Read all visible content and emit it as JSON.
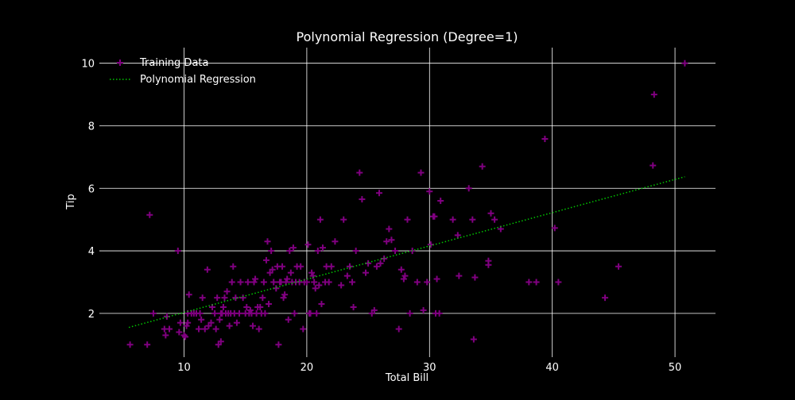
{
  "colors": {
    "background": "#000000",
    "text": "#ffffff",
    "grid": "#ffffff",
    "points": "#800080",
    "regression": "#00c800"
  },
  "chart_data": {
    "type": "scatter",
    "title": "Polynomial Regression (Degree=1)",
    "xlabel": "Total Bill",
    "ylabel": "Tip",
    "xlim": [
      3.1,
      53.3
    ],
    "ylim": [
      0.6,
      10.5
    ],
    "x_ticks": [
      10,
      20,
      30,
      40,
      50
    ],
    "y_ticks": [
      2,
      4,
      6,
      8,
      10
    ],
    "grid": true,
    "legend_position": "top-left",
    "legend": [
      {
        "label": "Training Data",
        "marker": "plus-icon"
      },
      {
        "label": "Polynomial Regression",
        "marker": "dotted-line-icon"
      }
    ],
    "series": [
      {
        "name": "Training Data",
        "kind": "scatter",
        "marker": "plus",
        "color": "#800080",
        "points": [
          [
            5.6,
            1.0
          ],
          [
            7.0,
            1.0
          ],
          [
            7.2,
            5.15
          ],
          [
            7.5,
            2.0
          ],
          [
            8.4,
            1.5
          ],
          [
            8.5,
            1.3
          ],
          [
            8.6,
            1.9
          ],
          [
            8.8,
            1.5
          ],
          [
            9.5,
            4.0
          ],
          [
            9.6,
            1.4
          ],
          [
            9.7,
            1.7
          ],
          [
            10.0,
            1.3
          ],
          [
            10.1,
            1.25
          ],
          [
            10.2,
            1.6
          ],
          [
            10.3,
            1.7
          ],
          [
            10.3,
            2.0
          ],
          [
            10.4,
            2.6
          ],
          [
            10.6,
            2.0
          ],
          [
            10.8,
            2.0
          ],
          [
            11.0,
            2.0
          ],
          [
            11.2,
            1.5
          ],
          [
            11.3,
            2.0
          ],
          [
            11.4,
            1.8
          ],
          [
            11.5,
            2.5
          ],
          [
            11.7,
            1.5
          ],
          [
            11.9,
            3.4
          ],
          [
            12.0,
            1.6
          ],
          [
            12.2,
            1.7
          ],
          [
            12.3,
            2.2
          ],
          [
            12.5,
            2.0
          ],
          [
            12.6,
            1.5
          ],
          [
            12.7,
            2.5
          ],
          [
            12.8,
            1.0
          ],
          [
            12.9,
            1.8
          ],
          [
            13.0,
            2.0
          ],
          [
            13.0,
            1.1
          ],
          [
            13.1,
            2.0
          ],
          [
            13.2,
            2.2
          ],
          [
            13.3,
            2.5
          ],
          [
            13.4,
            2.0
          ],
          [
            13.5,
            2.7
          ],
          [
            13.6,
            2.0
          ],
          [
            13.7,
            1.6
          ],
          [
            13.8,
            2.0
          ],
          [
            13.9,
            3.0
          ],
          [
            14.0,
            3.5
          ],
          [
            14.1,
            2.0
          ],
          [
            14.2,
            2.5
          ],
          [
            14.3,
            1.7
          ],
          [
            14.5,
            2.0
          ],
          [
            14.6,
            3.0
          ],
          [
            14.8,
            2.5
          ],
          [
            15.0,
            2.0
          ],
          [
            15.1,
            2.2
          ],
          [
            15.2,
            3.0
          ],
          [
            15.3,
            2.0
          ],
          [
            15.4,
            2.1
          ],
          [
            15.5,
            2.0
          ],
          [
            15.6,
            1.6
          ],
          [
            15.7,
            3.0
          ],
          [
            15.8,
            3.1
          ],
          [
            15.9,
            2.0
          ],
          [
            16.0,
            2.2
          ],
          [
            16.1,
            1.5
          ],
          [
            16.2,
            2.2
          ],
          [
            16.3,
            2.0
          ],
          [
            16.4,
            2.5
          ],
          [
            16.5,
            3.0
          ],
          [
            16.6,
            2.0
          ],
          [
            16.7,
            3.7
          ],
          [
            16.8,
            4.3
          ],
          [
            16.9,
            2.3
          ],
          [
            17.0,
            3.3
          ],
          [
            17.1,
            4.0
          ],
          [
            17.2,
            3.4
          ],
          [
            17.3,
            3.0
          ],
          [
            17.5,
            2.8
          ],
          [
            17.6,
            3.5
          ],
          [
            17.7,
            1.0
          ],
          [
            17.8,
            3.0
          ],
          [
            17.9,
            3.0
          ],
          [
            18.0,
            3.5
          ],
          [
            18.1,
            2.5
          ],
          [
            18.2,
            2.6
          ],
          [
            18.3,
            3.0
          ],
          [
            18.4,
            3.1
          ],
          [
            18.5,
            1.8
          ],
          [
            18.6,
            4.0
          ],
          [
            18.7,
            3.3
          ],
          [
            18.8,
            3.0
          ],
          [
            18.9,
            4.1
          ],
          [
            19.0,
            2.0
          ],
          [
            19.1,
            3.0
          ],
          [
            19.2,
            3.5
          ],
          [
            19.4,
            3.0
          ],
          [
            19.5,
            3.5
          ],
          [
            19.7,
            1.5
          ],
          [
            19.8,
            3.0
          ],
          [
            20.0,
            3.0
          ],
          [
            20.1,
            4.2
          ],
          [
            20.2,
            2.0
          ],
          [
            20.3,
            2.0
          ],
          [
            20.4,
            3.3
          ],
          [
            20.5,
            3.2
          ],
          [
            20.6,
            3.0
          ],
          [
            20.7,
            2.8
          ],
          [
            20.8,
            2.0
          ],
          [
            20.9,
            4.0
          ],
          [
            21.0,
            2.9
          ],
          [
            21.1,
            5.0
          ],
          [
            21.2,
            2.3
          ],
          [
            21.3,
            4.1
          ],
          [
            21.5,
            3.0
          ],
          [
            21.6,
            3.5
          ],
          [
            21.8,
            3.0
          ],
          [
            22.0,
            3.5
          ],
          [
            22.3,
            4.3
          ],
          [
            22.8,
            2.9
          ],
          [
            23.0,
            5.0
          ],
          [
            23.3,
            3.2
          ],
          [
            23.5,
            3.5
          ],
          [
            23.7,
            3.0
          ],
          [
            23.8,
            2.2
          ],
          [
            24.0,
            4.0
          ],
          [
            24.3,
            6.5
          ],
          [
            24.5,
            5.65
          ],
          [
            24.8,
            3.3
          ],
          [
            25.0,
            3.6
          ],
          [
            25.3,
            2.0
          ],
          [
            25.5,
            2.1
          ],
          [
            25.7,
            3.5
          ],
          [
            25.9,
            5.85
          ],
          [
            26.0,
            3.6
          ],
          [
            26.3,
            3.75
          ],
          [
            26.5,
            4.3
          ],
          [
            26.7,
            4.7
          ],
          [
            26.9,
            4.35
          ],
          [
            27.2,
            4.0
          ],
          [
            27.5,
            1.5
          ],
          [
            27.7,
            3.4
          ],
          [
            27.9,
            3.1
          ],
          [
            28.0,
            3.2
          ],
          [
            28.2,
            5.0
          ],
          [
            28.4,
            2.0
          ],
          [
            28.6,
            4.0
          ],
          [
            29.0,
            3.0
          ],
          [
            29.3,
            6.5
          ],
          [
            29.5,
            2.1
          ],
          [
            29.8,
            3.0
          ],
          [
            30.0,
            5.9
          ],
          [
            30.1,
            4.2
          ],
          [
            30.3,
            5.1
          ],
          [
            30.4,
            5.1
          ],
          [
            30.5,
            2.0
          ],
          [
            30.6,
            3.1
          ],
          [
            30.8,
            2.0
          ],
          [
            30.9,
            5.6
          ],
          [
            31.9,
            5.0
          ],
          [
            32.3,
            4.5
          ],
          [
            32.4,
            3.2
          ],
          [
            33.2,
            6.0
          ],
          [
            33.5,
            5.0
          ],
          [
            33.6,
            1.17
          ],
          [
            33.7,
            3.15
          ],
          [
            34.3,
            6.7
          ],
          [
            34.8,
            3.55
          ],
          [
            34.8,
            3.68
          ],
          [
            35.0,
            5.2
          ],
          [
            35.3,
            5.0
          ],
          [
            35.8,
            4.7
          ],
          [
            38.1,
            3.0
          ],
          [
            38.7,
            3.0
          ],
          [
            39.4,
            7.58
          ],
          [
            40.2,
            4.73
          ],
          [
            40.5,
            3.0
          ],
          [
            44.3,
            2.5
          ],
          [
            45.4,
            3.5
          ],
          [
            48.2,
            6.73
          ],
          [
            48.3,
            9.0
          ],
          [
            50.8,
            10.0
          ]
        ]
      },
      {
        "name": "Polynomial Regression",
        "kind": "line",
        "style": "dotted",
        "color": "#00c800",
        "points": [
          [
            5.5,
            1.55
          ],
          [
            50.8,
            6.37
          ]
        ]
      }
    ]
  }
}
